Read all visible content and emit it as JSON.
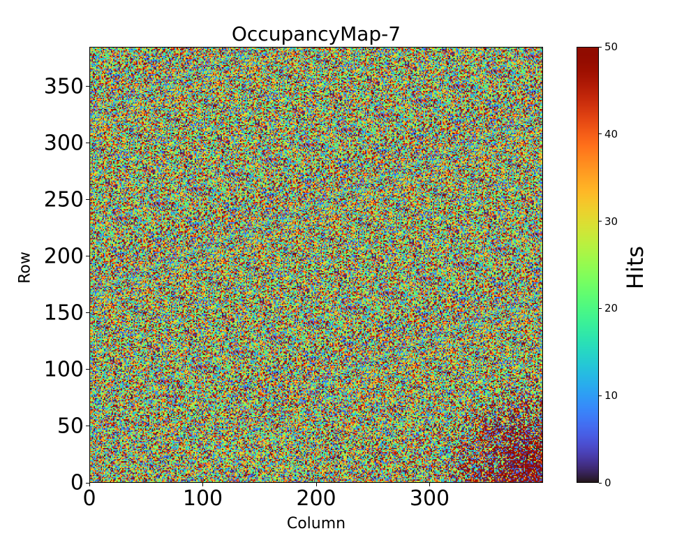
{
  "chart_data": {
    "type": "heatmap",
    "title": "OccupancyMap-7",
    "xlabel": "Column",
    "ylabel": "Row",
    "xlim": [
      0,
      400
    ],
    "ylim": [
      0,
      385
    ],
    "n_columns": 400,
    "n_rows": 385,
    "x_ticks": [
      "0",
      "100",
      "200",
      "300"
    ],
    "y_ticks": [
      "0",
      "50",
      "100",
      "150",
      "200",
      "250",
      "300",
      "350"
    ],
    "colormap": "turbo",
    "value_range": [
      0,
      50
    ],
    "distribution": "approximately uniform random noise over 0–50 across the whole map",
    "hotspot": {
      "center_column": 390,
      "center_row": 10,
      "radius": 80,
      "description": "values pushed to extremes (mostly ~50, some ~0) in bottom-right corner"
    },
    "colorbar": {
      "label": "Hits",
      "ticks": [
        "0",
        "10",
        "20",
        "30",
        "40",
        "50"
      ]
    }
  }
}
